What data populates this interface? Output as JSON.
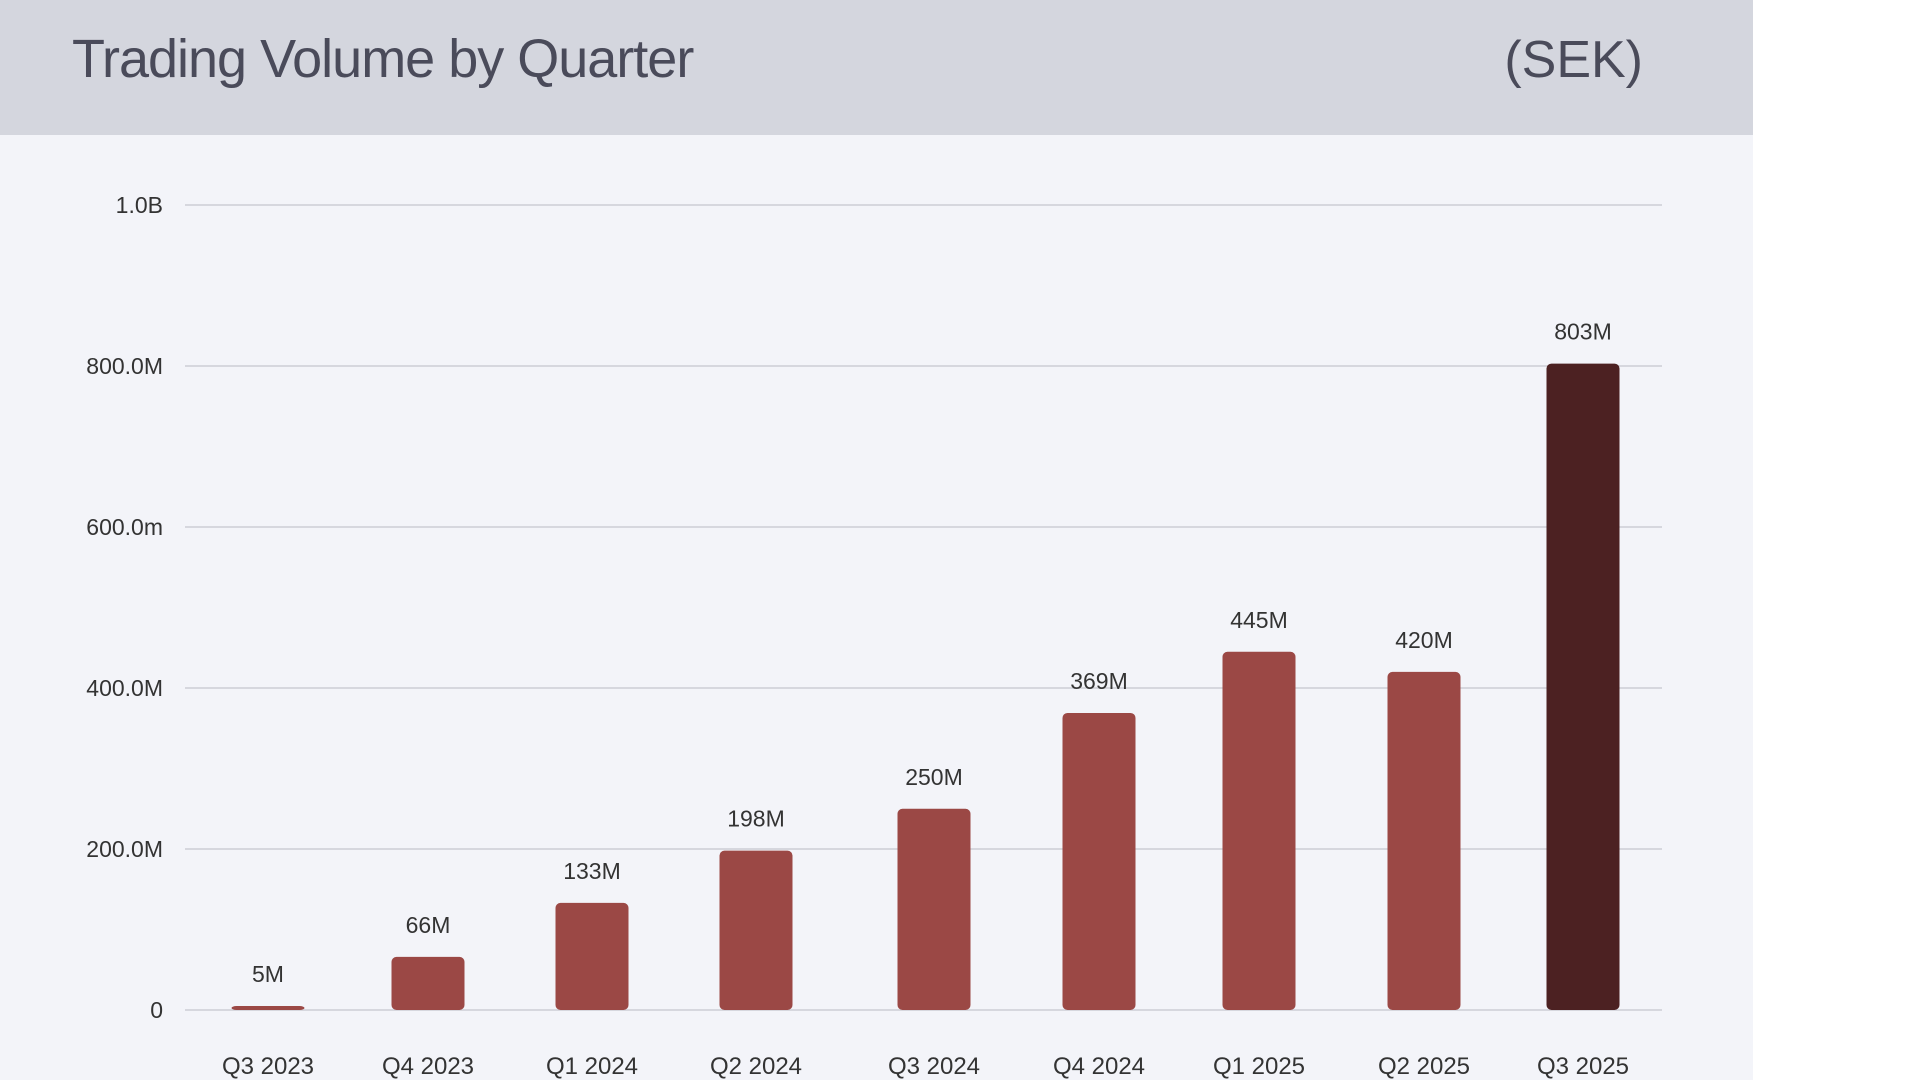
{
  "header": {
    "title": "Trading Volume by Quarter",
    "currency": "(SEK)"
  },
  "colors": {
    "bar": "#9b4845",
    "highlight_bar": "#4c2122",
    "header_bg": "#d4d6de",
    "panel_bg": "#f3f4f9",
    "grid": "#d6d7de",
    "title_text": "#4a4b5a"
  },
  "chart_data": {
    "type": "bar",
    "title": "Trading Volume by Quarter",
    "subtitle": "(SEK)",
    "xlabel": "",
    "ylabel": "",
    "categories": [
      "Q3 2023",
      "Q4 2023",
      "Q1 2024",
      "Q2 2024",
      "Q3 2024",
      "Q4 2024",
      "Q1 2025",
      "Q2 2025",
      "Q3 2025"
    ],
    "values": [
      5000000,
      66000000,
      133000000,
      198000000,
      250000000,
      369000000,
      445000000,
      420000000,
      803000000
    ],
    "data_labels": [
      "5M",
      "66M",
      "133M",
      "198M",
      "250M",
      "369M",
      "445M",
      "420M",
      "803M"
    ],
    "highlight_index": 8,
    "ylim": [
      0,
      1000000000
    ],
    "yticks": [
      0,
      200000000,
      400000000,
      600000000,
      800000000,
      1000000000
    ],
    "ytick_labels": [
      "0",
      "200.0M",
      "400.0M",
      "600.0m",
      "800.0M",
      "1.0B"
    ],
    "grid": true,
    "legend": "none"
  }
}
